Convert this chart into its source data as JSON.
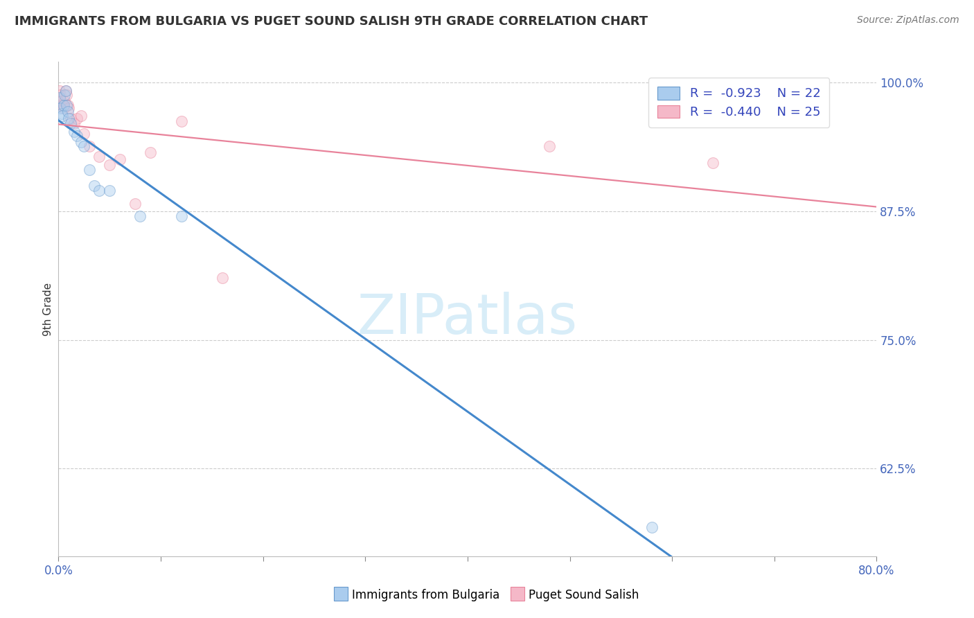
{
  "title": "IMMIGRANTS FROM BULGARIA VS PUGET SOUND SALISH 9TH GRADE CORRELATION CHART",
  "source": "Source: ZipAtlas.com",
  "ylabel": "9th Grade",
  "xlim": [
    0.0,
    0.8
  ],
  "ylim": [
    0.54,
    1.02
  ],
  "yticks": [
    0.625,
    0.75,
    0.875,
    1.0
  ],
  "ytick_labels": [
    "62.5%",
    "75.0%",
    "87.5%",
    "100.0%"
  ],
  "xtick_positions": [
    0.0,
    0.1,
    0.2,
    0.3,
    0.4,
    0.5,
    0.6,
    0.7,
    0.8
  ],
  "xtick_labels": [
    "0.0%",
    "",
    "",
    "",
    "",
    "",
    "",
    "",
    "80.0%"
  ],
  "blue_x": [
    0.001,
    0.002,
    0.003,
    0.004,
    0.005,
    0.006,
    0.007,
    0.008,
    0.009,
    0.01,
    0.012,
    0.015,
    0.018,
    0.022,
    0.025,
    0.03,
    0.035,
    0.04,
    0.05,
    0.08,
    0.12,
    0.58
  ],
  "blue_y": [
    0.985,
    0.975,
    0.97,
    0.968,
    0.978,
    0.988,
    0.992,
    0.978,
    0.972,
    0.965,
    0.96,
    0.952,
    0.948,
    0.942,
    0.938,
    0.915,
    0.9,
    0.895,
    0.895,
    0.87,
    0.87,
    0.568
  ],
  "pink_x": [
    0.001,
    0.002,
    0.003,
    0.004,
    0.005,
    0.006,
    0.007,
    0.008,
    0.009,
    0.01,
    0.012,
    0.015,
    0.018,
    0.022,
    0.025,
    0.03,
    0.04,
    0.05,
    0.06,
    0.075,
    0.09,
    0.12,
    0.16,
    0.48,
    0.64
  ],
  "pink_y": [
    0.992,
    0.988,
    0.982,
    0.978,
    0.975,
    0.982,
    0.992,
    0.988,
    0.978,
    0.975,
    0.965,
    0.96,
    0.965,
    0.968,
    0.95,
    0.938,
    0.928,
    0.92,
    0.925,
    0.882,
    0.932,
    0.962,
    0.81,
    0.938,
    0.922
  ],
  "blue_R": -0.923,
  "blue_N": 22,
  "pink_R": -0.44,
  "pink_N": 25,
  "blue_color": "#aaccee",
  "pink_color": "#f5b8c8",
  "blue_edge_color": "#6699cc",
  "pink_edge_color": "#e8829a",
  "blue_line_color": "#4488cc",
  "pink_line_color": "#e8829a",
  "marker_size": 130,
  "marker_alpha": 0.45,
  "background_color": "#ffffff",
  "grid_color": "#cccccc",
  "title_color": "#333333",
  "tick_color": "#4466bb",
  "legend_text_color": "#3344bb",
  "watermark_color": "#d8edf8",
  "watermark": "ZIPatlas"
}
